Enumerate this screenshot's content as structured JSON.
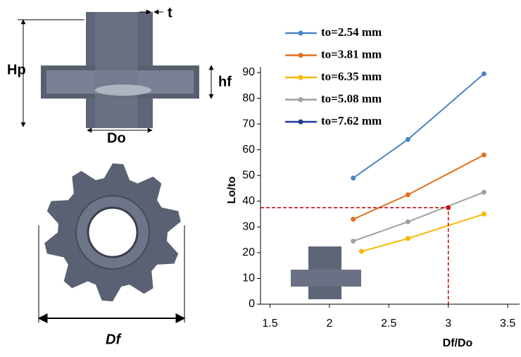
{
  "chart_data": {
    "type": "line",
    "x_label": "Df/Do",
    "y_label": "Lo/to",
    "xlim": [
      1.42,
      3.6
    ],
    "ylim": [
      0,
      90
    ],
    "xticks": [
      1.5,
      2,
      2.5,
      3,
      3.5
    ],
    "yticks": [
      0,
      10,
      20,
      30,
      40,
      50,
      60,
      70,
      80,
      90
    ],
    "series": [
      {
        "name": "to=2.54 mm",
        "color": "#4a86c5",
        "x": [
          2.2,
          2.66,
          3.3
        ],
        "values": [
          49,
          64,
          89.5
        ]
      },
      {
        "name": "to=3.81 mm",
        "color": "#e2701f",
        "x": [
          2.2,
          2.66,
          3.3
        ],
        "values": [
          33,
          42.5,
          58
        ]
      },
      {
        "name": "to=6.35 mm",
        "color": "#f5b800",
        "x": [
          2.27,
          2.66,
          3.3
        ],
        "values": [
          20.5,
          25.5,
          35
        ]
      },
      {
        "name": "to=5.08 mm",
        "color": "#a0a0a0",
        "x": [
          2.2,
          2.66,
          3.3
        ],
        "values": [
          24.5,
          32,
          43.5
        ]
      },
      {
        "name": "to=7.62 mm",
        "color": "#1f3a93",
        "marker_color": "#d01010",
        "x": [
          3
        ],
        "values": [
          37.5
        ]
      }
    ],
    "guide_color": "#c00000"
  },
  "figure_labels": {
    "t": "t",
    "hp": "Hp",
    "hf": "hf",
    "do": "Do",
    "df": "Df"
  }
}
